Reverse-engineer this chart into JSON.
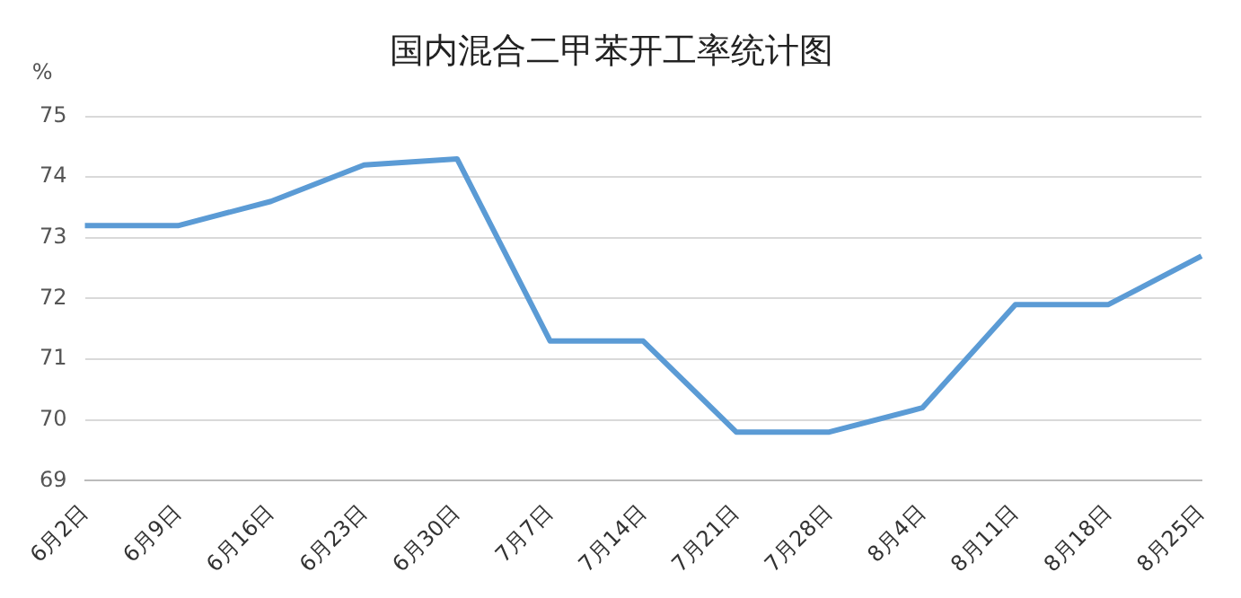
{
  "chart_data": {
    "type": "line",
    "title": "国内混合二甲苯开工率统计图",
    "ylabel": "%",
    "categories": [
      "6月2日",
      "6月9日",
      "6月16日",
      "6月23日",
      "6月30日",
      "7月7日",
      "7月14日",
      "7月21日",
      "7月28日",
      "8月4日",
      "8月11日",
      "8月18日",
      "8月25日"
    ],
    "series": [
      {
        "color": "#5b9bd5",
        "values": [
          73.2,
          73.2,
          73.6,
          74.2,
          74.3,
          71.3,
          71.3,
          69.8,
          69.8,
          70.2,
          71.9,
          71.9,
          72.7
        ]
      }
    ],
    "ylim": [
      69,
      75
    ],
    "yticks": [
      69,
      70,
      71,
      72,
      73,
      74,
      75
    ],
    "grid": "y",
    "legend": false,
    "marker": "none",
    "line_style": "solid"
  }
}
